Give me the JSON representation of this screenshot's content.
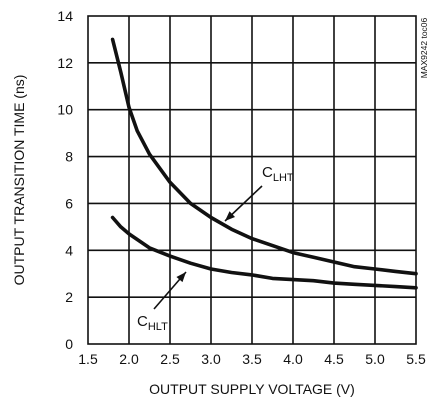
{
  "chart_data": {
    "type": "line",
    "title": "",
    "xlabel": "OUTPUT SUPPLY VOLTAGE (V)",
    "ylabel": "OUTPUT TRANSITION TIME (ns)",
    "xlim": [
      1.5,
      5.5
    ],
    "ylim": [
      0,
      14
    ],
    "x_ticks": [
      "1.5",
      "2.0",
      "2.5",
      "3.0",
      "3.5",
      "4.0",
      "4.5",
      "5.0",
      "5.5"
    ],
    "y_ticks": [
      "0",
      "2",
      "4",
      "6",
      "8",
      "10",
      "12",
      "14"
    ],
    "grid": true,
    "side_note": "MAX9242 toc06",
    "series": [
      {
        "name": "CLHT",
        "label_main": "C",
        "label_sub": "LHT",
        "x": [
          1.8,
          1.9,
          2.0,
          2.1,
          2.25,
          2.5,
          2.75,
          3.0,
          3.25,
          3.5,
          3.75,
          4.0,
          4.25,
          4.5,
          4.75,
          5.0,
          5.25,
          5.5
        ],
        "y": [
          13.0,
          11.6,
          10.1,
          9.1,
          8.1,
          6.9,
          6.0,
          5.4,
          4.9,
          4.5,
          4.2,
          3.9,
          3.7,
          3.5,
          3.3,
          3.2,
          3.1,
          3.0
        ]
      },
      {
        "name": "CHLT",
        "label_main": "C",
        "label_sub": "HLT",
        "x": [
          1.8,
          1.9,
          2.0,
          2.25,
          2.5,
          2.75,
          3.0,
          3.25,
          3.5,
          3.75,
          4.0,
          4.25,
          4.5,
          4.75,
          5.0,
          5.25,
          5.5
        ],
        "y": [
          5.4,
          5.0,
          4.7,
          4.1,
          3.75,
          3.45,
          3.2,
          3.05,
          2.95,
          2.8,
          2.75,
          2.7,
          2.6,
          2.55,
          2.5,
          2.45,
          2.4
        ]
      }
    ]
  }
}
